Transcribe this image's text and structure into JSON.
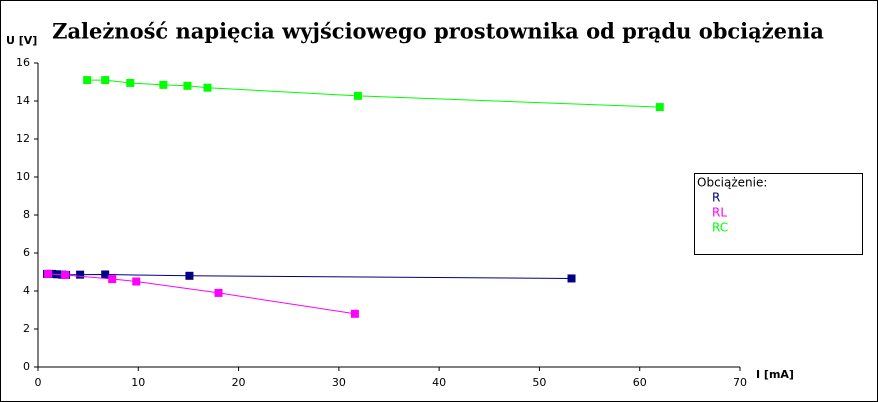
{
  "chart_data": {
    "type": "line",
    "title": "Zależność napięcia wyjściowego prostownika od prądu obciążenia",
    "x_label": "I [mA]",
    "y_label": "U [V]",
    "legend_title": "Obciążenie:",
    "xlim": [
      0,
      70
    ],
    "xticks": [
      0,
      10,
      20,
      30,
      40,
      50,
      60,
      70
    ],
    "ylim": [
      0,
      16
    ],
    "yticks": [
      0,
      2,
      4,
      6,
      8,
      10,
      12,
      14,
      16
    ],
    "grid": false,
    "legend": "right",
    "series": [
      {
        "name": "R",
        "color": "#000080",
        "x": [
          0.9,
          1.4,
          1.9,
          2.4,
          2.8,
          4.2,
          6.7,
          15.1,
          53.2
        ],
        "values": [
          4.9,
          4.9,
          4.88,
          4.86,
          4.85,
          4.86,
          4.87,
          4.8,
          4.66
        ]
      },
      {
        "name": "RL",
        "color": "#ff00ff",
        "x": [
          1.0,
          2.7,
          7.4,
          9.8,
          18.0,
          31.6
        ],
        "values": [
          4.9,
          4.84,
          4.63,
          4.5,
          3.9,
          2.8
        ]
      },
      {
        "name": "RC",
        "color": "#00ff00",
        "x": [
          4.9,
          6.7,
          9.2,
          12.5,
          14.9,
          16.9,
          31.9,
          62.0
        ],
        "values": [
          15.1,
          15.1,
          14.95,
          14.85,
          14.8,
          14.7,
          14.27,
          13.68
        ]
      }
    ]
  }
}
